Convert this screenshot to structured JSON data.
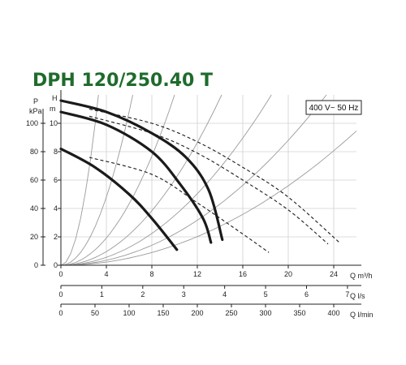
{
  "chart_data": {
    "type": "line",
    "title": "DPH 120/250.40 T",
    "badge": "400 V~ 50 Hz",
    "y_left": {
      "label": "P",
      "unit": "kPa",
      "range": [
        0,
        120
      ],
      "ticks": [
        0,
        20,
        40,
        60,
        80,
        100
      ]
    },
    "y_right": {
      "label": "H",
      "unit": "m",
      "range": [
        0,
        12
      ],
      "ticks": [
        0,
        2,
        4,
        6,
        8,
        10
      ]
    },
    "x_axes": [
      {
        "label": "Q m³/h",
        "range": [
          0,
          26
        ],
        "ticks": [
          0,
          4,
          8,
          12,
          16,
          20,
          24
        ]
      },
      {
        "label": "Q l/s",
        "range": [
          0,
          7.22
        ],
        "ticks": [
          0,
          1,
          2,
          3,
          4,
          5,
          6,
          7
        ]
      },
      {
        "label": "Q l/min",
        "range": [
          0,
          433.3
        ],
        "ticks": [
          0,
          50,
          100,
          150,
          200,
          250,
          300,
          350,
          400
        ]
      }
    ],
    "series": [
      {
        "style": "pump",
        "points": [
          [
            0,
            11.6
          ],
          [
            4,
            10.8
          ],
          [
            8,
            9.3
          ],
          [
            11,
            7.6
          ],
          [
            13,
            5.3
          ],
          [
            14.2,
            1.8
          ]
        ]
      },
      {
        "style": "pump",
        "points": [
          [
            0,
            10.8
          ],
          [
            4,
            9.9
          ],
          [
            8,
            8.0
          ],
          [
            10.5,
            5.7
          ],
          [
            12.5,
            3.3
          ],
          [
            13.2,
            1.6
          ]
        ]
      },
      {
        "style": "pump",
        "points": [
          [
            0,
            8.2
          ],
          [
            3,
            6.9
          ],
          [
            6,
            5.0
          ],
          [
            8,
            3.3
          ],
          [
            10.2,
            1.1
          ]
        ]
      },
      {
        "style": "efficiency",
        "points": [
          [
            2.5,
            11.0
          ],
          [
            8,
            10.0
          ],
          [
            12,
            8.7
          ],
          [
            16,
            6.9
          ],
          [
            20,
            4.8
          ],
          [
            24.5,
            1.6
          ]
        ]
      },
      {
        "style": "efficiency",
        "points": [
          [
            2.5,
            10.5
          ],
          [
            8,
            9.3
          ],
          [
            12,
            7.9
          ],
          [
            16,
            6.0
          ],
          [
            20,
            3.9
          ],
          [
            23.5,
            1.5
          ]
        ]
      },
      {
        "style": "efficiency",
        "points": [
          [
            2.5,
            7.6
          ],
          [
            8,
            6.4
          ],
          [
            12,
            4.4
          ],
          [
            16,
            2.2
          ],
          [
            18.3,
            0.9
          ]
        ]
      }
    ],
    "system_curves": [
      0.014,
      0.022,
      0.035,
      0.06,
      0.12,
      0.3,
      1.1
    ],
    "grid": true
  }
}
